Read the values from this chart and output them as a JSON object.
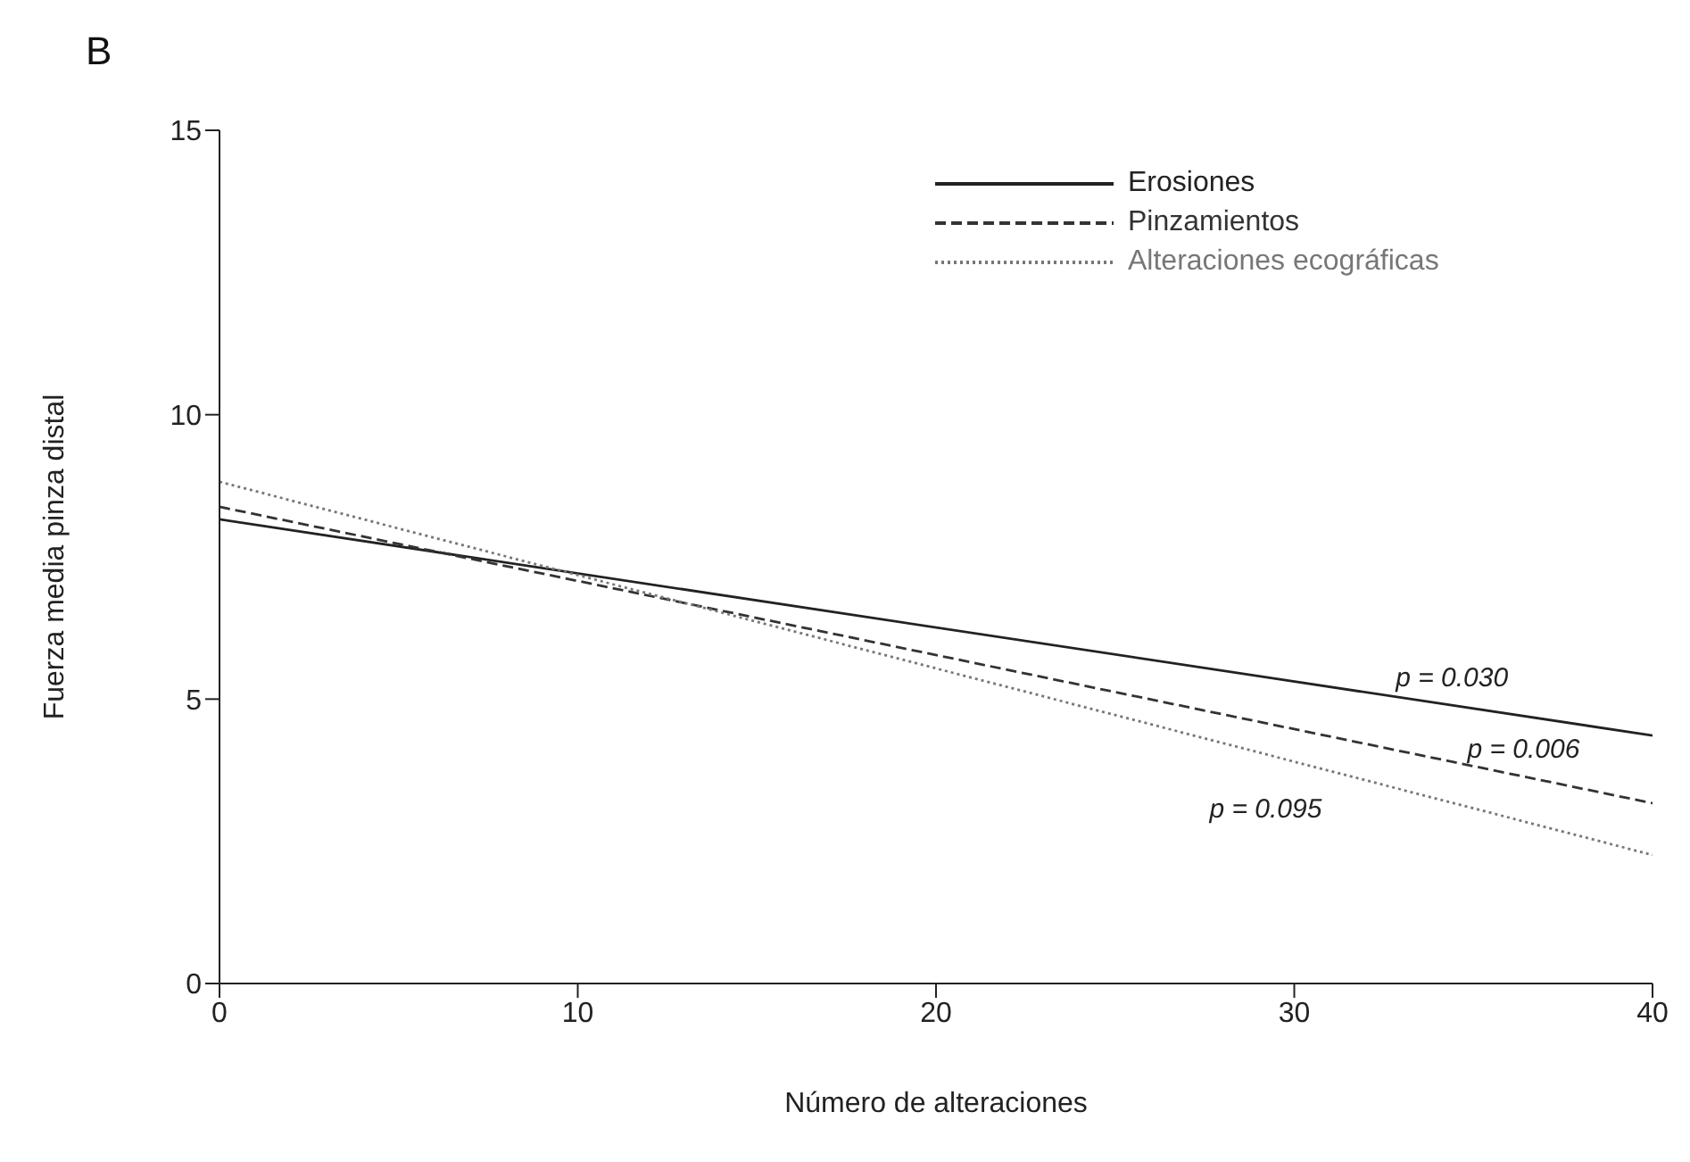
{
  "chart_data": {
    "type": "line",
    "title": "B",
    "xlabel": "Número de alteraciones",
    "ylabel": "Fuerza media pinza distal",
    "x": [
      0,
      40
    ],
    "series": [
      {
        "name": "Erosiones",
        "color": "#222222",
        "line_style": "solid",
        "values": [
          8.16,
          4.36
        ]
      },
      {
        "name": "Pinzamientos",
        "color": "#333333",
        "line_style": "dashed",
        "values": [
          8.38,
          3.17
        ]
      },
      {
        "name": "Alteraciones ecográficas",
        "color": "#777777",
        "line_style": "dotted",
        "values": [
          8.82,
          2.26
        ]
      }
    ],
    "xlim": [
      0,
      40
    ],
    "xticks": [
      0,
      10,
      20,
      30,
      40
    ],
    "ylim": [
      0,
      15
    ],
    "yticks": [
      0,
      5,
      10,
      15
    ],
    "grid": false,
    "legend": "top right",
    "marker": "none",
    "annotations": [
      "p = 0.030",
      "p = 0.006",
      "p = 0.095"
    ]
  }
}
